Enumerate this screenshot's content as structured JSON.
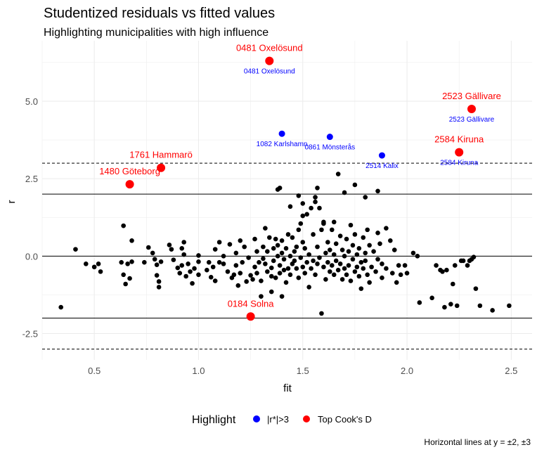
{
  "chart_data": {
    "type": "scatter",
    "title": "Studentized residuals vs fitted values",
    "subtitle": "Highlighting municipalities with high influence",
    "xlabel": "fit",
    "ylabel": "r",
    "xlim": [
      0.25,
      2.6
    ],
    "ylim": [
      -3.35,
      6.95
    ],
    "x_ticks": [
      0.5,
      1.0,
      1.5,
      2.0,
      2.5
    ],
    "x_tick_labels": [
      "0.5",
      "1.0",
      "1.5",
      "2.0",
      "2.5"
    ],
    "y_ticks": [
      -2.5,
      0.0,
      2.5,
      5.0
    ],
    "y_tick_labels": [
      "-2.5",
      "0.0",
      "2.5",
      "5.0"
    ],
    "grid": true,
    "solid_hlines": [
      -2,
      0,
      2
    ],
    "dashed_hlines": [
      -3,
      3
    ],
    "caption": "Horizontal lines at y = ±2, ±3",
    "legend": {
      "title": "Highlight",
      "position": "bottom",
      "entries": [
        {
          "label": "|r*|>3",
          "color": "#0000ff"
        },
        {
          "label": "Top Cook's D",
          "color": "#ff0000"
        }
      ]
    },
    "colors": {
      "points": "#000000",
      "high_resid": "#0000ff",
      "top_cooks": "#ff0000"
    },
    "highlighted_points": [
      {
        "name": "0481 Oxelösund",
        "x": 1.34,
        "y": 6.3,
        "group": "Top Cook's D",
        "also_high_resid": true
      },
      {
        "name": "2523 Gällivare",
        "x": 2.31,
        "y": 4.75,
        "group": "Top Cook's D",
        "also_high_resid": true
      },
      {
        "name": "2584 Kiruna",
        "x": 2.25,
        "y": 3.35,
        "group": "Top Cook's D",
        "also_high_resid": true
      },
      {
        "name": "1761 Hammarö",
        "x": 0.82,
        "y": 2.85,
        "group": "Top Cook's D",
        "also_high_resid": false
      },
      {
        "name": "1480 Göteborg",
        "x": 0.67,
        "y": 2.32,
        "group": "Top Cook's D",
        "also_high_resid": false
      },
      {
        "name": "0184 Solna",
        "x": 1.25,
        "y": -1.95,
        "group": "Top Cook's D",
        "also_high_resid": false
      },
      {
        "name": "1082 Karlshamn",
        "x": 1.4,
        "y": 3.95,
        "group": "|r*|>3",
        "also_high_resid": true
      },
      {
        "name": "0861 Mönsterås",
        "x": 1.63,
        "y": 3.85,
        "group": "|r*|>3",
        "also_high_resid": true
      },
      {
        "name": "2514 Kalix",
        "x": 1.88,
        "y": 3.25,
        "group": "|r*|>3",
        "also_high_resid": true
      }
    ],
    "points": [
      [
        0.34,
        -1.65
      ],
      [
        0.41,
        0.22
      ],
      [
        0.46,
        -0.25
      ],
      [
        0.5,
        -0.35
      ],
      [
        0.52,
        -0.25
      ],
      [
        0.53,
        -0.5
      ],
      [
        0.64,
        0.98
      ],
      [
        0.63,
        -0.2
      ],
      [
        0.64,
        -0.6
      ],
      [
        0.65,
        -0.9
      ],
      [
        0.66,
        -0.25
      ],
      [
        0.67,
        -0.72
      ],
      [
        0.68,
        -0.18
      ],
      [
        0.68,
        0.5
      ],
      [
        0.74,
        -0.2
      ],
      [
        0.76,
        0.28
      ],
      [
        0.78,
        0.1
      ],
      [
        0.79,
        -0.1
      ],
      [
        0.8,
        -0.28
      ],
      [
        0.8,
        -0.62
      ],
      [
        0.81,
        -0.82
      ],
      [
        0.81,
        -1.0
      ],
      [
        0.82,
        -0.18
      ],
      [
        0.86,
        0.36
      ],
      [
        0.87,
        0.22
      ],
      [
        0.88,
        -0.12
      ],
      [
        0.9,
        -0.38
      ],
      [
        0.91,
        -0.55
      ],
      [
        0.92,
        -0.3
      ],
      [
        0.92,
        0.25
      ],
      [
        0.93,
        0.05
      ],
      [
        0.94,
        -0.65
      ],
      [
        0.95,
        -0.25
      ],
      [
        0.96,
        -0.5
      ],
      [
        0.97,
        -0.88
      ],
      [
        0.98,
        -0.4
      ],
      [
        0.93,
        0.45
      ],
      [
        1.0,
        0.02
      ],
      [
        1.0,
        -0.6
      ],
      [
        1.0,
        -0.18
      ],
      [
        1.04,
        -0.45
      ],
      [
        1.05,
        -0.2
      ],
      [
        1.06,
        -0.68
      ],
      [
        1.07,
        -0.35
      ],
      [
        1.08,
        0.22
      ],
      [
        1.08,
        -0.8
      ],
      [
        1.1,
        -0.2
      ],
      [
        1.1,
        0.45
      ],
      [
        1.12,
        -0.25
      ],
      [
        1.12,
        0.0
      ],
      [
        1.14,
        -0.5
      ],
      [
        1.15,
        0.38
      ],
      [
        1.16,
        -0.7
      ],
      [
        1.17,
        -0.6
      ],
      [
        1.18,
        -0.3
      ],
      [
        1.18,
        0.1
      ],
      [
        1.19,
        -0.95
      ],
      [
        1.2,
        0.5
      ],
      [
        1.2,
        -0.55
      ],
      [
        1.21,
        -0.2
      ],
      [
        1.22,
        0.3
      ],
      [
        1.23,
        -0.82
      ],
      [
        1.24,
        -0.05
      ],
      [
        1.25,
        -0.62
      ],
      [
        1.26,
        -0.75
      ],
      [
        1.27,
        0.55
      ],
      [
        1.27,
        -0.35
      ],
      [
        1.28,
        0.15
      ],
      [
        1.28,
        -0.55
      ],
      [
        1.29,
        -0.2
      ],
      [
        1.3,
        -0.8
      ],
      [
        1.3,
        -1.3
      ],
      [
        1.31,
        0.3
      ],
      [
        1.31,
        -0.08
      ],
      [
        1.32,
        -0.25
      ],
      [
        1.32,
        0.9
      ],
      [
        1.33,
        -0.5
      ],
      [
        1.33,
        0.15
      ],
      [
        1.34,
        0.6
      ],
      [
        1.35,
        -1.15
      ],
      [
        1.35,
        -0.65
      ],
      [
        1.35,
        -0.38
      ],
      [
        1.36,
        0.25
      ],
      [
        1.36,
        -0.15
      ],
      [
        1.37,
        0.55
      ],
      [
        1.37,
        -0.7
      ],
      [
        1.38,
        0.0
      ],
      [
        1.38,
        0.35
      ],
      [
        1.39,
        -0.3
      ],
      [
        1.39,
        -0.55
      ],
      [
        1.4,
        0.1
      ],
      [
        1.4,
        -1.3
      ],
      [
        1.4,
        0.5
      ],
      [
        1.41,
        -0.1
      ],
      [
        1.41,
        -0.45
      ],
      [
        1.42,
        0.25
      ],
      [
        1.42,
        -0.85
      ],
      [
        1.43,
        0.7
      ],
      [
        1.43,
        -0.4
      ],
      [
        1.44,
        0.0
      ],
      [
        1.44,
        -0.6
      ],
      [
        1.45,
        -0.25
      ],
      [
        1.45,
        0.6
      ],
      [
        1.46,
        0.15
      ],
      [
        1.46,
        -0.15
      ],
      [
        1.47,
        -0.4
      ],
      [
        1.47,
        0.3
      ],
      [
        1.48,
        0.85
      ],
      [
        1.48,
        -0.7
      ],
      [
        1.49,
        1.05
      ],
      [
        1.49,
        -0.05
      ],
      [
        1.5,
        0.45
      ],
      [
        1.5,
        -0.35
      ],
      [
        1.51,
        0.25
      ],
      [
        1.51,
        -0.55
      ],
      [
        1.52,
        1.35
      ],
      [
        1.52,
        -0.2
      ],
      [
        1.53,
        0.05
      ],
      [
        1.53,
        -1.0
      ],
      [
        1.54,
        1.55
      ],
      [
        1.54,
        -0.4
      ],
      [
        1.55,
        0.7
      ],
      [
        1.55,
        -0.15
      ],
      [
        1.56,
        1.75
      ],
      [
        1.56,
        -0.6
      ],
      [
        1.57,
        0.3
      ],
      [
        1.57,
        -0.25
      ],
      [
        1.58,
        1.55
      ],
      [
        1.58,
        -0.05
      ],
      [
        1.59,
        0.85
      ],
      [
        1.59,
        -1.85
      ],
      [
        1.6,
        1.1
      ],
      [
        1.6,
        -0.35
      ],
      [
        1.61,
        0.1
      ],
      [
        1.61,
        -0.75
      ],
      [
        1.62,
        -0.2
      ],
      [
        1.62,
        0.45
      ],
      [
        1.63,
        -0.5
      ],
      [
        1.63,
        0.2
      ],
      [
        1.64,
        0.85
      ],
      [
        1.64,
        -0.3
      ],
      [
        1.65,
        -0.6
      ],
      [
        1.65,
        0.05
      ],
      [
        1.66,
        0.4
      ],
      [
        1.66,
        -0.15
      ],
      [
        1.67,
        2.65
      ],
      [
        1.67,
        -0.45
      ],
      [
        1.68,
        0.65
      ],
      [
        1.68,
        -0.25
      ],
      [
        1.69,
        0.2
      ],
      [
        1.69,
        -0.75
      ],
      [
        1.7,
        0.0
      ],
      [
        1.7,
        -0.4
      ],
      [
        1.71,
        0.55
      ],
      [
        1.71,
        -0.6
      ],
      [
        1.72,
        0.15
      ],
      [
        1.72,
        -0.3
      ],
      [
        1.73,
        1.0
      ],
      [
        1.73,
        -0.8
      ],
      [
        1.74,
        0.35
      ],
      [
        1.74,
        -0.1
      ],
      [
        1.75,
        -0.5
      ],
      [
        1.75,
        0.7
      ],
      [
        1.76,
        0.05
      ],
      [
        1.76,
        -0.35
      ],
      [
        1.77,
        -0.65
      ],
      [
        1.77,
        0.25
      ],
      [
        1.78,
        -0.2
      ],
      [
        1.78,
        -1.05
      ],
      [
        1.79,
        0.6
      ],
      [
        1.79,
        -0.4
      ],
      [
        1.8,
        0.1
      ],
      [
        1.8,
        -0.15
      ],
      [
        1.81,
        -0.6
      ],
      [
        1.81,
        0.85
      ],
      [
        1.82,
        0.35
      ],
      [
        1.82,
        -0.85
      ],
      [
        1.83,
        -0.35
      ],
      [
        1.84,
        0.15
      ],
      [
        1.85,
        -0.5
      ],
      [
        1.86,
        0.75
      ],
      [
        1.86,
        -0.1
      ],
      [
        1.87,
        0.4
      ],
      [
        1.88,
        -0.25
      ],
      [
        1.88,
        -0.7
      ],
      [
        1.9,
        0.9
      ],
      [
        1.9,
        -0.4
      ],
      [
        1.92,
        0.5
      ],
      [
        1.93,
        -0.55
      ],
      [
        1.94,
        0.2
      ],
      [
        1.95,
        -0.85
      ],
      [
        1.96,
        -0.3
      ],
      [
        1.97,
        -0.6
      ],
      [
        1.99,
        -0.3
      ],
      [
        2.0,
        -0.55
      ],
      [
        2.03,
        0.1
      ],
      [
        2.05,
        0.0
      ],
      [
        2.06,
        -1.5
      ],
      [
        2.12,
        -1.35
      ],
      [
        2.14,
        -0.3
      ],
      [
        2.16,
        -0.45
      ],
      [
        2.17,
        -0.5
      ],
      [
        2.18,
        -1.65
      ],
      [
        2.19,
        -0.45
      ],
      [
        2.21,
        -1.55
      ],
      [
        2.22,
        -0.9
      ],
      [
        2.23,
        -0.3
      ],
      [
        2.24,
        -1.6
      ],
      [
        2.26,
        -0.15
      ],
      [
        2.27,
        -0.15
      ],
      [
        2.29,
        -0.3
      ],
      [
        2.3,
        -0.15
      ],
      [
        2.31,
        -0.1
      ],
      [
        2.32,
        -0.03
      ],
      [
        2.33,
        -1.05
      ],
      [
        2.35,
        -1.6
      ],
      [
        2.41,
        -1.75
      ],
      [
        2.49,
        -1.6
      ],
      [
        1.44,
        1.6
      ],
      [
        1.5,
        1.3
      ],
      [
        1.56,
        1.9
      ],
      [
        1.6,
        1.05
      ],
      [
        1.7,
        2.05
      ],
      [
        1.75,
        2.3
      ],
      [
        1.8,
        1.9
      ],
      [
        1.57,
        2.2
      ],
      [
        1.48,
        1.95
      ],
      [
        1.39,
        2.2
      ],
      [
        1.5,
        1.7
      ],
      [
        1.65,
        1.1
      ],
      [
        1.86,
        2.1
      ],
      [
        1.38,
        2.15
      ]
    ]
  }
}
